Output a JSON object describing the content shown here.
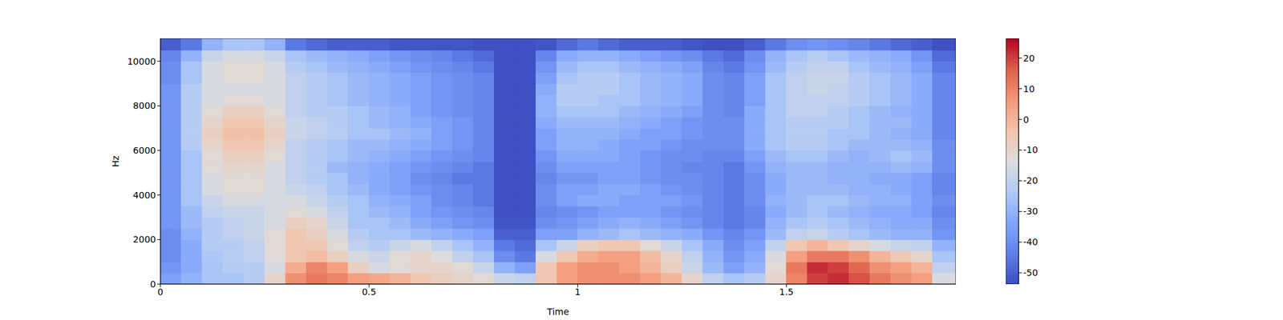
{
  "chart_data": {
    "type": "heatmap",
    "x_label": "Time",
    "y_label": "Hz",
    "xlim": [
      0,
      1.906
    ],
    "xticks": [
      0,
      0.5,
      1,
      1.5
    ],
    "ylim": [
      0,
      11025
    ],
    "yticks": [
      0,
      2000,
      4000,
      6000,
      8000,
      10000
    ],
    "x_edges": [
      0,
      0.05,
      0.1,
      0.15,
      0.2,
      0.25,
      0.3,
      0.35,
      0.4,
      0.45,
      0.5,
      0.55,
      0.6,
      0.65,
      0.7,
      0.75,
      0.8,
      0.85,
      0.9,
      0.95,
      1,
      1.05,
      1.1,
      1.15,
      1.2,
      1.25,
      1.3,
      1.35,
      1.4,
      1.45,
      1.5,
      1.55,
      1.6,
      1.65,
      1.7,
      1.75,
      1.8,
      1.85,
      1.906
    ],
    "y_edges": [
      0,
      500,
      1000,
      1500,
      2000,
      2500,
      3000,
      3500,
      4000,
      4500,
      5000,
      5500,
      6000,
      6500,
      7000,
      7500,
      8000,
      8500,
      9000,
      9500,
      10000,
      10500,
      11025
    ],
    "cells": [
      [
        -35,
        -30,
        -25,
        -25,
        -22,
        -10,
        8,
        12,
        10,
        5,
        3,
        0,
        -5,
        -8,
        -10,
        -12,
        -18,
        -20,
        -5,
        5,
        8,
        8,
        8,
        5,
        0,
        -10,
        -20,
        -25,
        -22,
        -10,
        10,
        20,
        22,
        18,
        12,
        8,
        5,
        -15
      ],
      [
        -38,
        -32,
        -25,
        -22,
        -22,
        -15,
        2,
        10,
        5,
        -8,
        -15,
        -12,
        -10,
        -10,
        -12,
        -18,
        -30,
        -35,
        -5,
        5,
        8,
        8,
        5,
        0,
        -8,
        -18,
        -28,
        -35,
        -30,
        -12,
        12,
        22,
        20,
        15,
        8,
        5,
        0,
        -20
      ],
      [
        -40,
        -32,
        -24,
        -22,
        -20,
        -12,
        -5,
        -2,
        -8,
        -15,
        -18,
        -12,
        -10,
        -14,
        -20,
        -25,
        -40,
        -45,
        -15,
        -5,
        2,
        5,
        5,
        -2,
        -10,
        -20,
        -30,
        -38,
        -32,
        -15,
        5,
        12,
        12,
        8,
        0,
        -5,
        -10,
        -25
      ],
      [
        -40,
        -32,
        -22,
        -22,
        -20,
        -12,
        -5,
        -5,
        -12,
        -20,
        -22,
        -18,
        -15,
        -20,
        -25,
        -30,
        -45,
        -48,
        -25,
        -18,
        -8,
        -5,
        -5,
        -12,
        -18,
        -25,
        -32,
        -40,
        -35,
        -20,
        -5,
        0,
        -5,
        -10,
        -15,
        -18,
        -20,
        -30
      ],
      [
        -40,
        -30,
        -22,
        -20,
        -18,
        -12,
        -5,
        -8,
        -15,
        -22,
        -25,
        -25,
        -28,
        -30,
        -32,
        -35,
        -50,
        -50,
        -35,
        -35,
        -30,
        -28,
        -25,
        -28,
        -30,
        -32,
        -38,
        -42,
        -38,
        -28,
        -20,
        -18,
        -22,
        -25,
        -28,
        -30,
        -30,
        -38
      ],
      [
        -38,
        -28,
        -22,
        -20,
        -18,
        -15,
        -8,
        -10,
        -18,
        -25,
        -25,
        -28,
        -32,
        -35,
        -38,
        -40,
        -52,
        -52,
        -40,
        -38,
        -35,
        -32,
        -30,
        -32,
        -35,
        -38,
        -42,
        -45,
        -42,
        -30,
        -25,
        -22,
        -25,
        -28,
        -30,
        -32,
        -32,
        -40
      ],
      [
        -38,
        -28,
        -20,
        -18,
        -18,
        -15,
        -12,
        -15,
        -20,
        -25,
        -28,
        -30,
        -35,
        -38,
        -40,
        -42,
        -53,
        -53,
        -42,
        -40,
        -38,
        -35,
        -35,
        -35,
        -38,
        -40,
        -42,
        -45,
        -42,
        -32,
        -28,
        -25,
        -28,
        -30,
        -32,
        -32,
        -35,
        -42
      ],
      [
        -38,
        -25,
        -18,
        -15,
        -15,
        -15,
        -15,
        -18,
        -22,
        -25,
        -30,
        -32,
        -35,
        -40,
        -42,
        -45,
        -53,
        -53,
        -40,
        -35,
        -32,
        -32,
        -35,
        -35,
        -35,
        -38,
        -42,
        -45,
        -40,
        -30,
        -28,
        -25,
        -25,
        -28,
        -30,
        -30,
        -35,
        -40
      ],
      [
        -38,
        -25,
        -15,
        -12,
        -12,
        -15,
        -18,
        -20,
        -25,
        -28,
        -32,
        -35,
        -38,
        -40,
        -42,
        -45,
        -53,
        -53,
        -40,
        -35,
        -35,
        -32,
        -32,
        -35,
        -38,
        -40,
        -42,
        -45,
        -40,
        -32,
        -28,
        -28,
        -28,
        -30,
        -30,
        -32,
        -35,
        -42
      ],
      [
        -38,
        -25,
        -15,
        -12,
        -12,
        -15,
        -20,
        -22,
        -25,
        -30,
        -32,
        -35,
        -40,
        -42,
        -45,
        -45,
        -53,
        -53,
        -42,
        -38,
        -38,
        -35,
        -35,
        -38,
        -40,
        -40,
        -42,
        -45,
        -40,
        -32,
        -28,
        -28,
        -30,
        -30,
        -32,
        -32,
        -35,
        -42
      ],
      [
        -38,
        -25,
        -12,
        -10,
        -10,
        -15,
        -20,
        -22,
        -28,
        -30,
        -32,
        -35,
        -38,
        -40,
        -42,
        -45,
        -53,
        -53,
        -40,
        -35,
        -35,
        -35,
        -35,
        -38,
        -40,
        -42,
        -42,
        -45,
        -38,
        -30,
        -28,
        -28,
        -30,
        -30,
        -30,
        -28,
        -30,
        -40
      ],
      [
        -38,
        -25,
        -12,
        -8,
        -8,
        -12,
        -20,
        -22,
        -25,
        -28,
        -30,
        -32,
        -35,
        -38,
        -40,
        -42,
        -53,
        -53,
        -38,
        -32,
        -32,
        -32,
        -35,
        -38,
        -40,
        -40,
        -42,
        -42,
        -35,
        -28,
        -25,
        -25,
        -28,
        -30,
        -28,
        -25,
        -28,
        -40
      ],
      [
        -38,
        -22,
        -10,
        -5,
        -5,
        -10,
        -20,
        -22,
        -25,
        -28,
        -28,
        -30,
        -32,
        -35,
        -38,
        -42,
        -53,
        -53,
        -35,
        -30,
        -30,
        -32,
        -35,
        -35,
        -38,
        -40,
        -40,
        -40,
        -32,
        -25,
        -22,
        -22,
        -25,
        -28,
        -28,
        -28,
        -30,
        -40
      ],
      [
        -38,
        -22,
        -8,
        -3,
        -3,
        -8,
        -18,
        -20,
        -22,
        -25,
        -25,
        -28,
        -30,
        -35,
        -38,
        -42,
        -53,
        -53,
        -35,
        -30,
        -30,
        -30,
        -32,
        -35,
        -35,
        -38,
        -40,
        -40,
        -32,
        -25,
        -22,
        -22,
        -25,
        -25,
        -28,
        -30,
        -32,
        -42
      ],
      [
        -38,
        -22,
        -10,
        -5,
        -5,
        -10,
        -18,
        -20,
        -22,
        -25,
        -28,
        -30,
        -32,
        -35,
        -38,
        -42,
        -53,
        -53,
        -32,
        -28,
        -28,
        -28,
        -30,
        -32,
        -35,
        -38,
        -40,
        -40,
        -32,
        -25,
        -22,
        -22,
        -22,
        -25,
        -28,
        -28,
        -32,
        -42
      ],
      [
        -38,
        -22,
        -12,
        -8,
        -8,
        -12,
        -20,
        -22,
        -22,
        -25,
        -28,
        -30,
        -35,
        -38,
        -40,
        -42,
        -53,
        -53,
        -30,
        -25,
        -25,
        -25,
        -28,
        -30,
        -32,
        -35,
        -40,
        -42,
        -32,
        -25,
        -20,
        -20,
        -22,
        -25,
        -28,
        -30,
        -32,
        -42
      ],
      [
        -38,
        -22,
        -15,
        -12,
        -12,
        -15,
        -20,
        -22,
        -25,
        -28,
        -30,
        -32,
        -35,
        -38,
        -40,
        -42,
        -53,
        -53,
        -30,
        -22,
        -22,
        -25,
        -25,
        -28,
        -30,
        -32,
        -40,
        -42,
        -35,
        -25,
        -20,
        -20,
        -20,
        -22,
        -25,
        -28,
        -32,
        -42
      ],
      [
        -38,
        -22,
        -15,
        -15,
        -15,
        -15,
        -20,
        -22,
        -25,
        -28,
        -30,
        -32,
        -35,
        -38,
        -40,
        -42,
        -53,
        -53,
        -32,
        -22,
        -22,
        -22,
        -25,
        -28,
        -30,
        -32,
        -40,
        -42,
        -35,
        -25,
        -20,
        -18,
        -20,
        -22,
        -25,
        -28,
        -32,
        -42
      ],
      [
        -40,
        -25,
        -15,
        -12,
        -12,
        -15,
        -20,
        -22,
        -25,
        -28,
        -30,
        -32,
        -35,
        -38,
        -40,
        -42,
        -53,
        -53,
        -35,
        -25,
        -22,
        -22,
        -25,
        -28,
        -30,
        -32,
        -40,
        -42,
        -35,
        -25,
        -20,
        -18,
        -18,
        -22,
        -25,
        -28,
        -32,
        -42
      ],
      [
        -40,
        -25,
        -15,
        -12,
        -12,
        -15,
        -22,
        -25,
        -28,
        -30,
        -32,
        -35,
        -38,
        -40,
        -42,
        -45,
        -53,
        -53,
        -38,
        -28,
        -25,
        -25,
        -28,
        -30,
        -32,
        -35,
        -42,
        -45,
        -38,
        -28,
        -22,
        -20,
        -20,
        -25,
        -28,
        -30,
        -35,
        -45
      ],
      [
        -42,
        -30,
        -18,
        -15,
        -15,
        -18,
        -25,
        -28,
        -30,
        -32,
        -35,
        -38,
        -40,
        -42,
        -45,
        -48,
        -53,
        -53,
        -42,
        -32,
        -30,
        -30,
        -32,
        -35,
        -38,
        -40,
        -45,
        -48,
        -40,
        -30,
        -25,
        -22,
        -25,
        -28,
        -30,
        -32,
        -38,
        -48
      ],
      [
        -50,
        -45,
        -30,
        -25,
        -25,
        -30,
        -45,
        -48,
        -50,
        -50,
        -50,
        -52,
        -52,
        -52,
        -52,
        -53,
        -53,
        -53,
        -52,
        -48,
        -45,
        -48,
        -50,
        -50,
        -50,
        -52,
        -53,
        -53,
        -50,
        -45,
        -40,
        -38,
        -40,
        -42,
        -45,
        -48,
        -50,
        -53
      ]
    ],
    "colorbar_range": [
      -53.7,
      26.4
    ],
    "colorbar_ticks": [
      -50,
      -40,
      -30,
      -20,
      -10,
      0,
      10,
      20
    ]
  }
}
